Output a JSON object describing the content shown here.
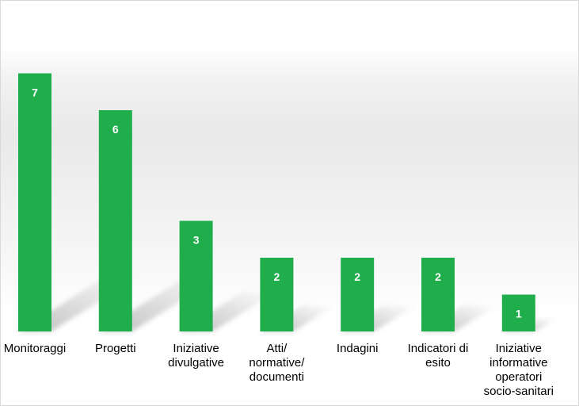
{
  "chart_data": {
    "type": "bar",
    "categories": [
      "Monitoraggi",
      "Progetti",
      "Iniziative divulgative",
      "Atti/ normative/ documenti",
      "Indagini",
      "Indicatori di esito",
      "Iniziative informative operatori socio-sanitari"
    ],
    "category_lines": [
      [
        "Monitoraggi"
      ],
      [
        "Progetti"
      ],
      [
        "Iniziative",
        "divulgative"
      ],
      [
        "Atti/",
        "normative/",
        "documenti"
      ],
      [
        "Indagini"
      ],
      [
        "Indicatori di",
        "esito"
      ],
      [
        "Iniziative",
        "informative",
        "operatori",
        "socio-sanitari"
      ]
    ],
    "values": [
      7,
      6,
      3,
      2,
      2,
      2,
      1
    ],
    "data_labels": [
      "7",
      "6",
      "3",
      "2",
      "2",
      "2",
      "1"
    ],
    "ylim": [
      0,
      8
    ],
    "grid": false,
    "legend": "none",
    "title": "",
    "xlabel": "",
    "ylabel": ""
  },
  "colors": {
    "bar": "#1fae4b",
    "data_label": "#ffffff",
    "shadow": "#8c8c8c",
    "border": "#d9d9d9"
  }
}
